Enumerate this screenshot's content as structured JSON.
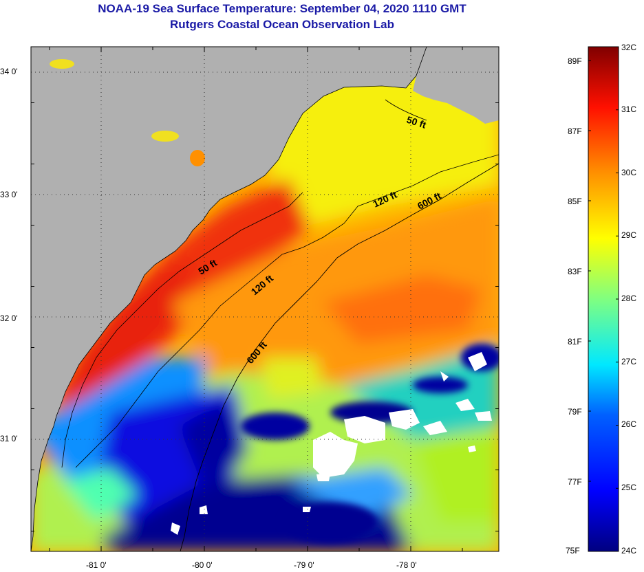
{
  "title_line1": "NOAA-19 Sea Surface Temperature:  September 04, 2020 1110 GMT",
  "title_line2": "Rutgers Coastal Ocean Observation Lab",
  "lat_labels": [
    {
      "text": "34 0'",
      "lat": 34.0
    },
    {
      "text": "33 0'",
      "lat": 33.0
    },
    {
      "text": "32 0'",
      "lat": 32.0
    },
    {
      "text": "31 0'",
      "lat": 31.0
    }
  ],
  "lon_labels": [
    {
      "text": "-81 0'",
      "lon": -81.0
    },
    {
      "text": "-80 0'",
      "lon": -80.0
    },
    {
      "text": "-79 0'",
      "lon": -79.0
    },
    {
      "text": "-78 0'",
      "lon": -78.0
    }
  ],
  "contour_labels": [
    "50 ft",
    "120 ft",
    "600 ft",
    "50 ft",
    "120 ft",
    "600 ft"
  ],
  "colorbar": {
    "fahrenheit": [
      "89F",
      "87F",
      "85F",
      "83F",
      "81F",
      "79F",
      "77F",
      "75F"
    ],
    "celsius": [
      "32C",
      "31C",
      "30C",
      "29C",
      "28C",
      "27C",
      "26C",
      "25C",
      "24C"
    ]
  },
  "colors": {
    "land": "#b0b0b0",
    "title": "#1a1aa6",
    "cloud": "#ffffff"
  }
}
